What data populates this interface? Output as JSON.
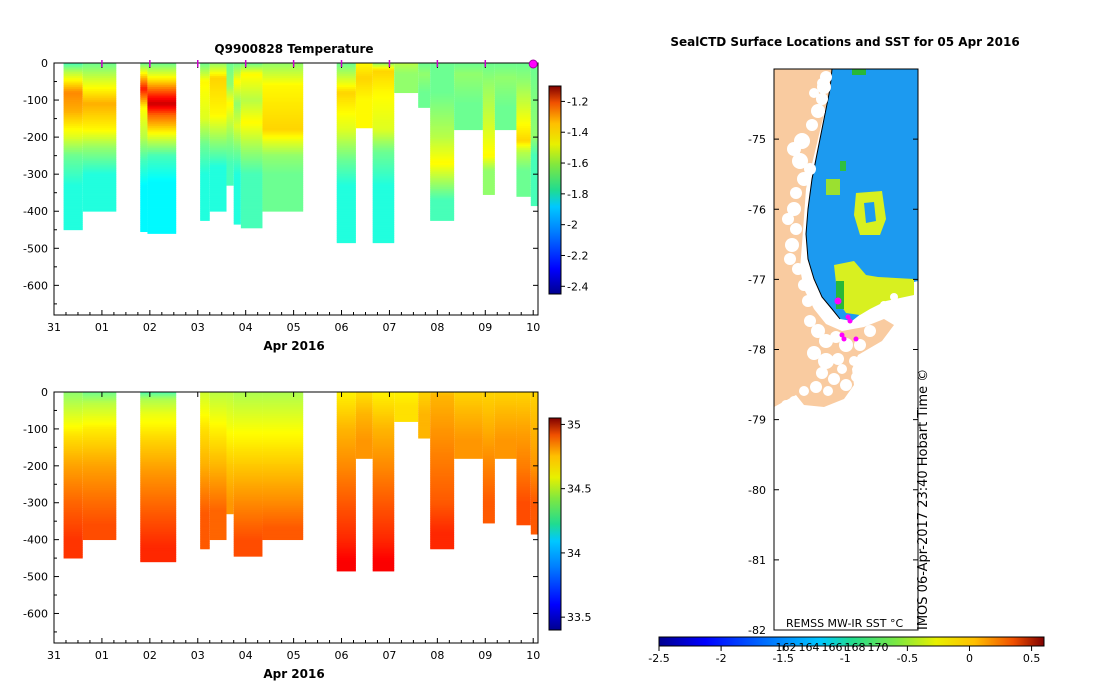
{
  "chart_data": [
    {
      "type": "heatmap",
      "id": "temperature",
      "title": "Q9900828  Temperature",
      "xlabel": "Apr 2016",
      "x_ticks": [
        "31",
        "01",
        "02",
        "03",
        "04",
        "05",
        "06",
        "07",
        "08",
        "09",
        "10"
      ],
      "xlim": [
        0,
        10.1
      ],
      "ylim": [
        -680,
        0
      ],
      "y_ticks": [
        0,
        -100,
        -200,
        -300,
        -400,
        -500,
        -600
      ],
      "colorbar": {
        "min": -2.45,
        "max": -1.1,
        "ticks": [
          -1.2,
          -1.4,
          -1.6,
          -1.8,
          -2,
          -2.2,
          -2.4
        ]
      },
      "profile_markers": [
        1,
        2,
        3,
        4,
        5,
        6,
        7,
        8,
        9,
        10
      ],
      "bad_marker": 10,
      "profiles": [
        {
          "x0": 0.2,
          "x1": 0.6,
          "depth": 450,
          "layers": [
            [
              0,
              -1.85
            ],
            [
              25,
              -1.7
            ],
            [
              80,
              -1.45
            ],
            [
              130,
              -1.5
            ],
            [
              200,
              -1.65
            ],
            [
              250,
              -1.8
            ],
            [
              330,
              -1.9
            ]
          ]
        },
        {
          "x0": 0.6,
          "x1": 1.3,
          "depth": 400,
          "layers": [
            [
              0,
              -1.8
            ],
            [
              50,
              -1.65
            ],
            [
              110,
              -1.5
            ],
            [
              180,
              -1.6
            ],
            [
              230,
              -1.75
            ],
            [
              300,
              -1.9
            ]
          ]
        },
        {
          "x0": 1.8,
          "x1": 1.95,
          "depth": 455,
          "layers": [
            [
              0,
              -1.8
            ],
            [
              70,
              -1.3
            ],
            [
              120,
              -1.6
            ],
            [
              200,
              -1.7
            ],
            [
              260,
              -1.85
            ],
            [
              330,
              -1.95
            ]
          ]
        },
        {
          "x0": 1.95,
          "x1": 2.55,
          "depth": 460,
          "layers": [
            [
              0,
              -1.8
            ],
            [
              50,
              -1.55
            ],
            [
              90,
              -1.3
            ],
            [
              110,
              -1.2
            ],
            [
              140,
              -1.4
            ],
            [
              200,
              -1.65
            ],
            [
              250,
              -1.85
            ],
            [
              320,
              -1.95
            ]
          ]
        },
        {
          "x0": 3.05,
          "x1": 3.25,
          "depth": 425,
          "layers": [
            [
              0,
              -1.8
            ],
            [
              50,
              -1.6
            ],
            [
              150,
              -1.65
            ],
            [
              220,
              -1.8
            ],
            [
              300,
              -1.9
            ]
          ]
        },
        {
          "x0": 3.25,
          "x1": 3.6,
          "depth": 400,
          "layers": [
            [
              0,
              -1.75
            ],
            [
              40,
              -1.55
            ],
            [
              140,
              -1.6
            ],
            [
              210,
              -1.75
            ],
            [
              280,
              -1.9
            ]
          ]
        },
        {
          "x0": 3.6,
          "x1": 3.75,
          "depth": 330,
          "layers": [
            [
              0,
              -1.8
            ],
            [
              60,
              -1.75
            ],
            [
              110,
              -1.6
            ],
            [
              200,
              -1.75
            ],
            [
              270,
              -1.85
            ]
          ]
        },
        {
          "x0": 3.75,
          "x1": 3.9,
          "depth": 435,
          "layers": [
            [
              0,
              -1.8
            ],
            [
              50,
              -1.6
            ],
            [
              110,
              -1.75
            ],
            [
              170,
              -1.65
            ],
            [
              240,
              -1.8
            ],
            [
              300,
              -1.9
            ]
          ]
        },
        {
          "x0": 3.9,
          "x1": 4.35,
          "depth": 445,
          "layers": [
            [
              0,
              -1.8
            ],
            [
              30,
              -1.6
            ],
            [
              100,
              -1.7
            ],
            [
              160,
              -1.6
            ],
            [
              240,
              -1.75
            ],
            [
              300,
              -1.85
            ]
          ]
        },
        {
          "x0": 4.35,
          "x1": 5.2,
          "depth": 400,
          "layers": [
            [
              0,
              -1.75
            ],
            [
              60,
              -1.6
            ],
            [
              180,
              -1.55
            ],
            [
              250,
              -1.75
            ],
            [
              300,
              -1.8
            ]
          ]
        },
        {
          "x0": 5.9,
          "x1": 6.3,
          "depth": 485,
          "layers": [
            [
              0,
              -1.8
            ],
            [
              80,
              -1.55
            ],
            [
              180,
              -1.65
            ],
            [
              260,
              -1.8
            ],
            [
              330,
              -1.9
            ]
          ]
        },
        {
          "x0": 6.3,
          "x1": 6.65,
          "depth": 175,
          "layers": [
            [
              0,
              -1.6
            ],
            [
              40,
              -1.55
            ],
            [
              100,
              -1.6
            ]
          ]
        },
        {
          "x0": 6.65,
          "x1": 7.1,
          "depth": 485,
          "layers": [
            [
              0,
              -1.75
            ],
            [
              20,
              -1.55
            ],
            [
              80,
              -1.6
            ],
            [
              180,
              -1.65
            ],
            [
              240,
              -1.8
            ],
            [
              330,
              -1.9
            ]
          ]
        },
        {
          "x0": 7.1,
          "x1": 7.6,
          "depth": 80,
          "layers": [
            [
              0,
              -1.7
            ],
            [
              30,
              -1.75
            ]
          ]
        },
        {
          "x0": 7.6,
          "x1": 7.85,
          "depth": 120,
          "layers": [
            [
              0,
              -1.8
            ],
            [
              30,
              -1.75
            ],
            [
              80,
              -1.8
            ]
          ]
        },
        {
          "x0": 7.85,
          "x1": 8.35,
          "depth": 425,
          "layers": [
            [
              0,
              -1.8
            ],
            [
              80,
              -1.8
            ],
            [
              200,
              -1.7
            ],
            [
              270,
              -1.6
            ],
            [
              330,
              -1.75
            ],
            [
              370,
              -1.85
            ]
          ]
        },
        {
          "x0": 8.35,
          "x1": 8.95,
          "depth": 180,
          "layers": [
            [
              0,
              -1.8
            ],
            [
              30,
              -1.75
            ],
            [
              110,
              -1.8
            ]
          ]
        },
        {
          "x0": 8.95,
          "x1": 9.2,
          "depth": 355,
          "layers": [
            [
              0,
              -1.8
            ],
            [
              50,
              -1.75
            ],
            [
              250,
              -1.6
            ],
            [
              290,
              -1.75
            ]
          ]
        },
        {
          "x0": 9.2,
          "x1": 9.65,
          "depth": 180,
          "layers": [
            [
              0,
              -1.8
            ],
            [
              40,
              -1.75
            ],
            [
              120,
              -1.8
            ]
          ]
        },
        {
          "x0": 9.65,
          "x1": 9.95,
          "depth": 360,
          "layers": [
            [
              0,
              -1.8
            ],
            [
              50,
              -1.75
            ],
            [
              210,
              -1.55
            ],
            [
              240,
              -1.7
            ],
            [
              290,
              -1.8
            ]
          ]
        },
        {
          "x0": 9.95,
          "x1": 10.1,
          "depth": 385,
          "layers": [
            [
              0,
              -1.8
            ],
            [
              200,
              -1.75
            ],
            [
              250,
              -1.85
            ]
          ]
        }
      ]
    },
    {
      "type": "heatmap",
      "id": "salinity",
      "title": "",
      "xlabel": "Apr 2016",
      "x_ticks": [
        "31",
        "01",
        "02",
        "03",
        "04",
        "05",
        "06",
        "07",
        "08",
        "09",
        "10"
      ],
      "xlim": [
        0,
        10.1
      ],
      "ylim": [
        -680,
        0
      ],
      "y_ticks": [
        0,
        -100,
        -200,
        -300,
        -400,
        -500,
        -600
      ],
      "colorbar": {
        "min": 33.4,
        "max": 35.05,
        "ticks": [
          35,
          34.5,
          34,
          33.5
        ]
      },
      "profiles": [
        {
          "x0": 0.2,
          "x1": 0.6,
          "depth": 450,
          "layers": [
            [
              0,
              34.25
            ],
            [
              50,
              34.35
            ],
            [
              120,
              34.48
            ],
            [
              200,
              34.58
            ],
            [
              300,
              34.68
            ],
            [
              400,
              34.76
            ]
          ]
        },
        {
          "x0": 0.6,
          "x1": 1.3,
          "depth": 400,
          "layers": [
            [
              0,
              34.2
            ],
            [
              30,
              34.32
            ],
            [
              100,
              34.46
            ],
            [
              200,
              34.58
            ],
            [
              300,
              34.67
            ],
            [
              360,
              34.72
            ]
          ]
        },
        {
          "x0": 1.8,
          "x1": 2.55,
          "depth": 460,
          "layers": [
            [
              0,
              34.15
            ],
            [
              20,
              34.3
            ],
            [
              60,
              34.4
            ],
            [
              130,
              34.5
            ],
            [
              220,
              34.6
            ],
            [
              330,
              34.7
            ],
            [
              420,
              34.78
            ]
          ]
        },
        {
          "x0": 3.05,
          "x1": 3.25,
          "depth": 425,
          "layers": [
            [
              0,
              34.35
            ],
            [
              100,
              34.48
            ],
            [
              200,
              34.56
            ],
            [
              330,
              34.7
            ]
          ]
        },
        {
          "x0": 3.25,
          "x1": 3.6,
          "depth": 400,
          "layers": [
            [
              0,
              34.32
            ],
            [
              100,
              34.45
            ],
            [
              200,
              34.55
            ],
            [
              320,
              34.68
            ]
          ]
        },
        {
          "x0": 3.6,
          "x1": 3.75,
          "depth": 330,
          "layers": [
            [
              0,
              34.32
            ],
            [
              100,
              34.42
            ],
            [
              200,
              34.52
            ],
            [
              300,
              34.6
            ]
          ]
        },
        {
          "x0": 3.75,
          "x1": 4.35,
          "depth": 445,
          "layers": [
            [
              0,
              34.3
            ],
            [
              100,
              34.42
            ],
            [
              200,
              34.52
            ],
            [
              300,
              34.62
            ],
            [
              400,
              34.72
            ]
          ]
        },
        {
          "x0": 4.35,
          "x1": 5.2,
          "depth": 400,
          "layers": [
            [
              0,
              34.3
            ],
            [
              100,
              34.42
            ],
            [
              200,
              34.52
            ],
            [
              300,
              34.62
            ],
            [
              370,
              34.7
            ]
          ]
        },
        {
          "x0": 5.9,
          "x1": 6.3,
          "depth": 485,
          "layers": [
            [
              0,
              34.45
            ],
            [
              100,
              34.55
            ],
            [
              200,
              34.62
            ],
            [
              300,
              34.7
            ],
            [
              400,
              34.78
            ],
            [
              460,
              34.85
            ]
          ]
        },
        {
          "x0": 6.3,
          "x1": 6.65,
          "depth": 180,
          "layers": [
            [
              0,
              34.48
            ],
            [
              60,
              34.55
            ],
            [
              130,
              34.6
            ]
          ]
        },
        {
          "x0": 6.65,
          "x1": 7.1,
          "depth": 485,
          "layers": [
            [
              0,
              34.45
            ],
            [
              100,
              34.55
            ],
            [
              200,
              34.62
            ],
            [
              300,
              34.7
            ],
            [
              400,
              34.78
            ],
            [
              460,
              34.85
            ]
          ]
        },
        {
          "x0": 7.1,
          "x1": 7.6,
          "depth": 80,
          "layers": [
            [
              0,
              34.45
            ],
            [
              40,
              34.48
            ]
          ]
        },
        {
          "x0": 7.6,
          "x1": 7.85,
          "depth": 125,
          "layers": [
            [
              0,
              34.5
            ],
            [
              60,
              34.55
            ]
          ]
        },
        {
          "x0": 7.85,
          "x1": 8.35,
          "depth": 425,
          "layers": [
            [
              0,
              34.52
            ],
            [
              10,
              34.55
            ],
            [
              100,
              34.6
            ],
            [
              200,
              34.65
            ],
            [
              300,
              34.7
            ],
            [
              380,
              34.78
            ]
          ]
        },
        {
          "x0": 8.35,
          "x1": 8.95,
          "depth": 180,
          "layers": [
            [
              0,
              34.5
            ],
            [
              60,
              34.55
            ],
            [
              130,
              34.6
            ]
          ]
        },
        {
          "x0": 8.95,
          "x1": 9.2,
          "depth": 355,
          "layers": [
            [
              0,
              34.5
            ],
            [
              100,
              34.56
            ],
            [
              200,
              34.63
            ],
            [
              300,
              34.7
            ]
          ]
        },
        {
          "x0": 9.2,
          "x1": 9.65,
          "depth": 180,
          "layers": [
            [
              0,
              34.5
            ],
            [
              60,
              34.55
            ],
            [
              130,
              34.6
            ]
          ]
        },
        {
          "x0": 9.65,
          "x1": 9.95,
          "depth": 360,
          "layers": [
            [
              0,
              34.5
            ],
            [
              100,
              34.58
            ],
            [
              200,
              34.64
            ],
            [
              300,
              34.72
            ]
          ]
        },
        {
          "x0": 9.95,
          "x1": 10.1,
          "depth": 385,
          "layers": [
            [
              0,
              34.5
            ],
            [
              200,
              34.6
            ],
            [
              300,
              34.7
            ]
          ]
        }
      ]
    },
    {
      "type": "map",
      "id": "sst-map",
      "title": "SealCTD Surface Locations and SST for 05 Apr 2016",
      "y_ticks": [
        "-75",
        "-76",
        "-77",
        "-78",
        "-79",
        "-80",
        "-81",
        "-82"
      ],
      "colorbar_ticks": [
        "-2.5",
        "-2",
        "-1.5",
        "-1",
        "-0.5",
        "0",
        "0.5"
      ],
      "colorbar_sublabels": [
        "162",
        "164",
        "166",
        "168",
        "170"
      ],
      "source_label": "REMSS MW-IR SST °C",
      "credit": "IMOS 06-Apr-2017 23:40 Hobart Time ©"
    }
  ],
  "colors": {
    "land": "#f9cba0",
    "ocean": "#1c9af0",
    "marker": "#ff00ff",
    "colormap": [
      "#00008f",
      "#0000ff",
      "#007fff",
      "#00ffff",
      "#7fff7f",
      "#ffff00",
      "#ff7f00",
      "#ff0000",
      "#7f0000"
    ]
  }
}
